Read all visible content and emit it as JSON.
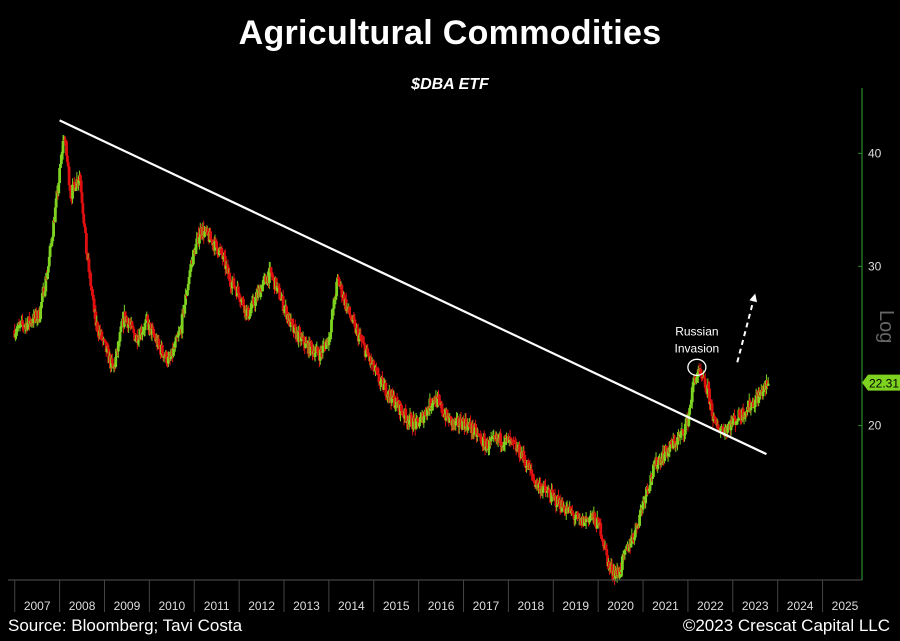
{
  "chart_data": {
    "type": "candlestick",
    "title": "Agricultural Commodities",
    "subtitle": "$DBA ETF",
    "y_scale": "log",
    "y_ticks": [
      40,
      30,
      20
    ],
    "y_axis_label": "Log",
    "last_price_label": "22.31",
    "x_ticks": [
      "2007",
      "2008",
      "2009",
      "2010",
      "2011",
      "2012",
      "2013",
      "2014",
      "2015",
      "2016",
      "2017",
      "2018",
      "2019",
      "2020",
      "2021",
      "2022",
      "2023",
      "2024",
      "2025"
    ],
    "xlim": [
      2006.85,
      2025.5
    ],
    "ylim": [
      13.5,
      47
    ],
    "annotation": "Russian\nInvasion",
    "annotation_date": 2022.2,
    "annotation_value": 23.2,
    "trendline": {
      "start": [
        2008.0,
        43.5
      ],
      "end": [
        2023.75,
        18.6
      ]
    },
    "projection_arrow": {
      "start": [
        2023.1,
        23.5
      ],
      "end": [
        2023.5,
        28.0
      ]
    },
    "up_color": "#7ed320",
    "down_color": "#e01010",
    "trendline_color": "#ffffff",
    "axis_color": "#2a8a2a",
    "price_anchors": [
      [
        2007.0,
        25.5
      ],
      [
        2007.3,
        26.0
      ],
      [
        2007.55,
        26.5
      ],
      [
        2007.75,
        30.0
      ],
      [
        2007.95,
        36.0
      ],
      [
        2008.1,
        42.0
      ],
      [
        2008.25,
        36.0
      ],
      [
        2008.45,
        38.0
      ],
      [
        2008.6,
        31.0
      ],
      [
        2008.8,
        26.0
      ],
      [
        2009.0,
        24.5
      ],
      [
        2009.2,
        23.0
      ],
      [
        2009.45,
        26.5
      ],
      [
        2009.7,
        25.0
      ],
      [
        2009.95,
        26.0
      ],
      [
        2010.2,
        24.5
      ],
      [
        2010.45,
        23.5
      ],
      [
        2010.7,
        25.5
      ],
      [
        2010.95,
        30.5
      ],
      [
        2011.15,
        33.0
      ],
      [
        2011.4,
        32.0
      ],
      [
        2011.6,
        31.0
      ],
      [
        2011.8,
        29.0
      ],
      [
        2012.0,
        28.0
      ],
      [
        2012.2,
        26.5
      ],
      [
        2012.5,
        28.5
      ],
      [
        2012.7,
        29.5
      ],
      [
        2012.95,
        27.5
      ],
      [
        2013.2,
        25.5
      ],
      [
        2013.5,
        24.5
      ],
      [
        2013.8,
        24.0
      ],
      [
        2014.0,
        25.0
      ],
      [
        2014.2,
        29.0
      ],
      [
        2014.4,
        27.0
      ],
      [
        2014.6,
        25.5
      ],
      [
        2014.85,
        24.0
      ],
      [
        2015.1,
        22.5
      ],
      [
        2015.4,
        21.5
      ],
      [
        2015.7,
        20.5
      ],
      [
        2015.95,
        20.0
      ],
      [
        2016.1,
        20.5
      ],
      [
        2016.35,
        21.5
      ],
      [
        2016.6,
        20.5
      ],
      [
        2016.8,
        20.0
      ],
      [
        2017.0,
        20.2
      ],
      [
        2017.2,
        19.8
      ],
      [
        2017.5,
        19.0
      ],
      [
        2017.8,
        19.3
      ],
      [
        2018.0,
        19.2
      ],
      [
        2018.3,
        18.6
      ],
      [
        2018.6,
        17.3
      ],
      [
        2018.9,
        16.8
      ],
      [
        2019.2,
        16.3
      ],
      [
        2019.4,
        16.0
      ],
      [
        2019.6,
        15.6
      ],
      [
        2019.85,
        15.9
      ],
      [
        2020.05,
        15.4
      ],
      [
        2020.25,
        13.9
      ],
      [
        2020.45,
        13.7
      ],
      [
        2020.65,
        14.6
      ],
      [
        2020.85,
        15.4
      ],
      [
        2021.05,
        16.8
      ],
      [
        2021.3,
        18.2
      ],
      [
        2021.6,
        18.9
      ],
      [
        2021.85,
        19.5
      ],
      [
        2022.0,
        20.3
      ],
      [
        2022.15,
        22.6
      ],
      [
        2022.25,
        22.8
      ],
      [
        2022.45,
        21.8
      ],
      [
        2022.6,
        20.0
      ],
      [
        2022.8,
        19.8
      ],
      [
        2023.0,
        20.2
      ],
      [
        2023.2,
        20.6
      ],
      [
        2023.45,
        21.2
      ],
      [
        2023.65,
        21.8
      ],
      [
        2023.8,
        22.3
      ]
    ],
    "source": "Source: Bloomberg; Tavi Costa",
    "copyright": "©2023 Crescat Capital LLC"
  }
}
